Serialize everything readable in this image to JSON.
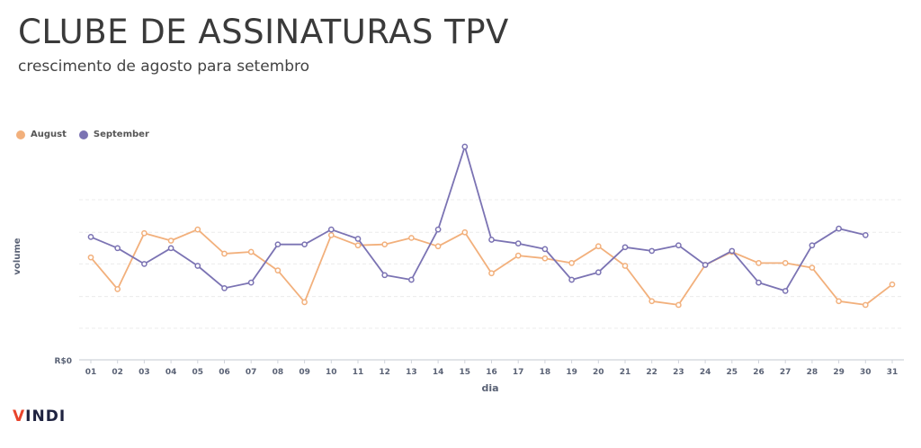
{
  "title": "CLUBE DE ASSINATURAS TPV",
  "subtitle": "crescimento de agosto para setembro",
  "brand": {
    "v": "V",
    "rest": "INDI"
  },
  "colors": {
    "august": "#f2b07c",
    "september": "#7b73b3"
  },
  "chart_data": {
    "type": "line",
    "xlabel": "dia",
    "ylabel": "volume",
    "y_zero_label": "R$0",
    "legend_position": "top-left",
    "grid": true,
    "categories": [
      "01",
      "02",
      "03",
      "04",
      "05",
      "06",
      "07",
      "08",
      "09",
      "10",
      "11",
      "12",
      "13",
      "14",
      "15",
      "16",
      "17",
      "18",
      "19",
      "20",
      "21",
      "22",
      "23",
      "24",
      "25",
      "26",
      "27",
      "28",
      "29",
      "30",
      "31"
    ],
    "ylim": [
      0,
      230
    ],
    "series": [
      {
        "name": "August",
        "color": "#f2b07c",
        "values": [
          110,
          76,
          136,
          128,
          140,
          114,
          116,
          96,
          62,
          134,
          123,
          124,
          131,
          122,
          137,
          93,
          112,
          109,
          104,
          122,
          101,
          63,
          59,
          102,
          116,
          104,
          104,
          99,
          63,
          59,
          81
        ]
      },
      {
        "name": "September",
        "color": "#7b73b3",
        "values": [
          132,
          120,
          103,
          120,
          101,
          77,
          83,
          124,
          124,
          140,
          130,
          91,
          86,
          140,
          229,
          129,
          125,
          119,
          86,
          94,
          121,
          117,
          123,
          102,
          117,
          83,
          74,
          123,
          141,
          134,
          null
        ]
      }
    ]
  }
}
